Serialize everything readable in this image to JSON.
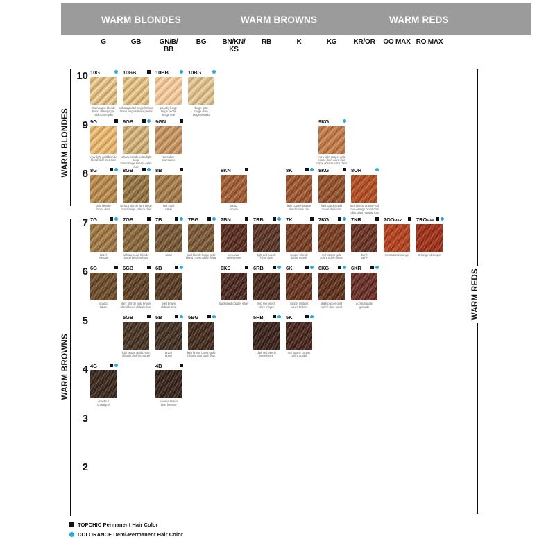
{
  "header": {
    "groups": [
      "WARM BLONDES",
      "WARM BROWNS",
      "WARM REDS"
    ]
  },
  "side_labels": {
    "left_top": "WARM BLONDES",
    "left_bottom": "WARM BROWNS",
    "right": "WARM REDS"
  },
  "legend": [
    {
      "marker": "topchic-square",
      "color": "#111111",
      "label": "TOPCHIC Permanent Hair Color"
    },
    {
      "marker": "colorance-dot",
      "color": "#2aa9dc",
      "label": "COLORANCE Demi-Permanent Hair Color"
    }
  ],
  "chart_data": {
    "type": "table",
    "columns": [
      "G",
      "GB",
      "GN/B/BB",
      "BG",
      "BN/KN/KS",
      "RB",
      "K",
      "KG",
      "KR/OR",
      "OO MAX",
      "RO MAX"
    ],
    "columns_display": [
      "G",
      "GB",
      "GN/B/\nBB",
      "BG",
      "BN/KN/\nKS",
      "RB",
      "K",
      "KG",
      "KR/OR",
      "OO MAX",
      "RO MAX"
    ],
    "row_levels": [
      10,
      9,
      8,
      7,
      6,
      5,
      4,
      3,
      2
    ],
    "swatches": [
      {
        "code": "10G",
        "level": 10,
        "column": "G",
        "products": [
          "colorance"
        ],
        "name": "champagne blonde\nblond champagne\nrubio champán",
        "colors": [
          "#eedcb2",
          "#dcb97e",
          "#bd9557"
        ]
      },
      {
        "code": "10GB",
        "level": 10,
        "column": "GB",
        "products": [
          "topchic"
        ],
        "name": "sahara pastel beige blonde\nblond beige sahara pastel",
        "colors": [
          "#eed9a8",
          "#dbb87c",
          "#bd9458"
        ]
      },
      {
        "code": "10BB",
        "level": 10,
        "column": "GN/B/BB",
        "products": [
          "colorance"
        ],
        "name": "peachy beige\nbeige pêche\nbeige real",
        "colors": [
          "#f6ddba",
          "#ecc294",
          "#dba671"
        ]
      },
      {
        "code": "10BG",
        "level": 10,
        "column": "BG",
        "products": [
          "colorance"
        ],
        "name": "beige gold\nbeige doré\nbeige dorado",
        "colors": [
          "#ecd7ae",
          "#d9bb8a",
          "#bc9c65"
        ]
      },
      {
        "code": "9G",
        "level": 9,
        "column": "G",
        "products": [
          "topchic"
        ],
        "name": "very light gold blonde\nblond doré très clair",
        "colors": [
          "#f2cd92",
          "#e2b168",
          "#c49150"
        ]
      },
      {
        "code": "9GB",
        "level": 9,
        "column": "GB",
        "products": [
          "topchic",
          "colorance"
        ],
        "name": "sahara blonde extra light beige\nblond beige sahara extra clair",
        "colors": [
          "#dfc79c",
          "#c8a972",
          "#a8874f"
        ]
      },
      {
        "code": "9GN",
        "level": 9,
        "column": "GN/B/BB",
        "products": [
          "topchic"
        ],
        "name": "turmaline\ntourmaline",
        "colors": [
          "#d8ad7d",
          "#c08e5c",
          "#a07245"
        ]
      },
      {
        "code": "9KG",
        "level": 9,
        "column": "KG",
        "products": [
          "colorance"
        ],
        "name": "extra light copper gold\ncuivré doré extra clair\ncobre dorado extra claro",
        "colors": [
          "#d2925f",
          "#bc7544",
          "#9c5c31"
        ]
      },
      {
        "code": "8G",
        "level": 8,
        "column": "G",
        "products": [
          "topchic",
          "colorance"
        ],
        "name": "gold blonde\nblond doré",
        "colors": [
          "#cb9f63",
          "#b28449",
          "#906834"
        ]
      },
      {
        "code": "8GB",
        "level": 8,
        "column": "GB",
        "products": [
          "topchic",
          "colorance"
        ],
        "name": "sahara blonde light beige\nblond beige sahara clair",
        "colors": [
          "#ad8d5a",
          "#8f6e40",
          "#6f542b"
        ]
      },
      {
        "code": "8B",
        "level": 8,
        "column": "GN/B/BB",
        "products": [
          "topchic"
        ],
        "name": "sea sand\nsable",
        "colors": [
          "#b99060",
          "#a07847",
          "#7f5d33"
        ]
      },
      {
        "code": "8KN",
        "level": 8,
        "column": "BN/KN/KS",
        "products": [
          "topchic"
        ],
        "name": "topaz\ntopaze",
        "colors": [
          "#b4734c",
          "#9a5931",
          "#7d4524"
        ]
      },
      {
        "code": "8K",
        "level": 8,
        "column": "K",
        "products": [
          "topchic",
          "colorance"
        ],
        "name": "light copper blonde\nblond cuivré clair",
        "colors": [
          "#b06f45",
          "#964f2c",
          "#7c4020"
        ]
      },
      {
        "code": "8KG",
        "level": 8,
        "column": "KG",
        "products": [
          "topchic"
        ],
        "name": "light copper gold\ncuivré doré clair",
        "colors": [
          "#a9653d",
          "#8e4e29",
          "#713b1d"
        ]
      },
      {
        "code": "8OR",
        "level": 8,
        "column": "KR/OR",
        "products": [
          "colorance"
        ],
        "name": "light blonde orange-red\nroux-orange blond clair\nrubio claro naranja rojo",
        "colors": [
          "#c66231",
          "#ab4b23",
          "#8d3a18"
        ]
      },
      {
        "code": "7G",
        "level": 7,
        "column": "G",
        "products": [
          "topchic",
          "colorance"
        ],
        "name": "hazel\nnoisette",
        "colors": [
          "#b68d57",
          "#9a7341",
          "#7b5a32"
        ]
      },
      {
        "code": "7GB",
        "level": 7,
        "column": "GB",
        "products": [
          "topchic"
        ],
        "name": "sahara beige blonde\nblond beige sahara",
        "colors": [
          "#9f7e51",
          "#846439",
          "#684c29"
        ]
      },
      {
        "code": "7B",
        "level": 7,
        "column": "GN/B/BB",
        "products": [
          "topchic",
          "colorance"
        ],
        "name": "safari",
        "colors": [
          "#8d6d47",
          "#725435",
          "#594025"
        ]
      },
      {
        "code": "7BG",
        "level": 7,
        "column": "BG",
        "products": [
          "topchic",
          "colorance"
        ],
        "name": "mid blonde beige gold\nblond moyen doré beige",
        "colors": [
          "#8f6e45",
          "#765636",
          "#5c4126"
        ]
      },
      {
        "code": "7BN",
        "level": 7,
        "column": "BN/KN/KS",
        "products": [
          "topchic"
        ],
        "name": "vesuvian\nvésuvienne",
        "colors": [
          "#6e4232",
          "#562b1e",
          "#3e1e15"
        ]
      },
      {
        "code": "7RB",
        "level": 7,
        "column": "RB",
        "products": [
          "topchic",
          "colorance"
        ],
        "name": "light red beech\nhêtre clair",
        "colors": [
          "#704736",
          "#583426",
          "#402419"
        ]
      },
      {
        "code": "7K",
        "level": 7,
        "column": "K",
        "products": [
          "topchic"
        ],
        "name": "copper blonde\nblond cuivré",
        "colors": [
          "#8d5135",
          "#733c23",
          "#592d18"
        ]
      },
      {
        "code": "7KG",
        "level": 7,
        "column": "KG",
        "products": [
          "topchic",
          "colorance"
        ],
        "name": "red copper gold\ncuivré doré moyen",
        "colors": [
          "#8f4e2e",
          "#743c20",
          "#5a2e17"
        ]
      },
      {
        "code": "7KR",
        "level": 7,
        "column": "KR/OR",
        "products": [
          "topchic"
        ],
        "name": "beryl\nbéryl",
        "colors": [
          "#7f4536",
          "#663224",
          "#4a2218"
        ]
      },
      {
        "code": "7OOMAX",
        "level": 7,
        "column": "OO MAX",
        "products": [
          "topchic"
        ],
        "name": "sensational orange",
        "colors": [
          "#c8532a",
          "#ac3f1d",
          "#8d3115"
        ]
      },
      {
        "code": "7ROMAX",
        "level": 7,
        "column": "RO MAX",
        "products": [
          "topchic",
          "colorance"
        ],
        "name": "striking red copper",
        "colors": [
          "#b44026",
          "#992f19",
          "#7c2511"
        ]
      },
      {
        "code": "6G",
        "level": 6,
        "column": "G",
        "products": [
          "topchic"
        ],
        "name": "tobacco\ntabac",
        "colors": [
          "#815e3c",
          "#684928",
          "#4f371e"
        ]
      },
      {
        "code": "6GB",
        "level": 6,
        "column": "GB",
        "products": [
          "topchic"
        ],
        "name": "dark blonde gold brown\nblond foncé châtain doré",
        "colors": [
          "#715434",
          "#5a3f24",
          "#422e19"
        ]
      },
      {
        "code": "6B",
        "level": 6,
        "column": "GN/B/BB",
        "products": [
          "topchic",
          "colorance"
        ],
        "name": "gold brown\nchâtain doré",
        "colors": [
          "#6d4e36",
          "#563a24",
          "#3f2a18"
        ]
      },
      {
        "code": "6KS",
        "level": 6,
        "column": "BN/KN/KS",
        "products": [
          "topchic"
        ],
        "name": "blackened copper silver",
        "colors": [
          "#5f3a32",
          "#482720",
          "#321914"
        ]
      },
      {
        "code": "6RB",
        "level": 6,
        "column": "RB",
        "products": [
          "topchic",
          "colorance"
        ],
        "name": "mid red beech\nhêtre moyen",
        "colors": [
          "#5f3b2e",
          "#492a1e",
          "#341d13"
        ]
      },
      {
        "code": "6K",
        "level": 6,
        "column": "K",
        "products": [
          "topchic",
          "colorance"
        ],
        "name": "copper brilliant\ncuivré brillant",
        "colors": [
          "#7d4632",
          "#643320",
          "#4a2413"
        ]
      },
      {
        "code": "6KG",
        "level": 6,
        "column": "KG",
        "products": [
          "topchic",
          "colorance"
        ],
        "name": "dark copper gold\ncuivré doré foncé",
        "colors": [
          "#74422e",
          "#5c311e",
          "#422113"
        ]
      },
      {
        "code": "6KR",
        "level": 6,
        "column": "KR/OR",
        "products": [
          "topchic",
          "colorance"
        ],
        "name": "pomegranate\ngrenade",
        "colors": [
          "#7f3f37",
          "#652e27",
          "#4a1f1a"
        ]
      },
      {
        "code": "5GB",
        "level": 5,
        "column": "GB",
        "products": [
          "topchic"
        ],
        "name": "light brown gold brown\nchâtain clair brun doré",
        "colors": [
          "#5b4534",
          "#473322",
          "#332416"
        ]
      },
      {
        "code": "5B",
        "level": 5,
        "column": "GN/B/BB",
        "products": [
          "topchic",
          "colorance"
        ],
        "name": "brazil\nbrésil",
        "colors": [
          "#554336",
          "#423024",
          "#2f2117"
        ]
      },
      {
        "code": "5BG",
        "level": 5,
        "column": "BG",
        "products": [
          "topchic",
          "colorance"
        ],
        "name": "light brown brown gold\nchâtain clair doré brun",
        "colors": [
          "#563c2e",
          "#432b1f",
          "#301d13"
        ]
      },
      {
        "code": "5RB",
        "level": 5,
        "column": "RB",
        "products": [
          "topchic",
          "colorance"
        ],
        "name": "dark red beech\nhêtre foncé",
        "colors": [
          "#4f322b",
          "#3b231c",
          "#281611"
        ]
      },
      {
        "code": "5K",
        "level": 5,
        "column": "K",
        "products": [
          "topchic",
          "colorance"
        ],
        "name": "mahogany copper\ncuivre acajou",
        "colors": [
          "#5b362e",
          "#47261f",
          "#321813"
        ]
      },
      {
        "code": "4G",
        "level": 4,
        "column": "G",
        "products": [
          "topchic",
          "colorance"
        ],
        "name": "chestnut\nchâtaigne",
        "colors": [
          "#4d392c",
          "#3b291e",
          "#2a1c12"
        ]
      },
      {
        "code": "4B",
        "level": 4,
        "column": "GN/B/BB",
        "products": [
          "topchic"
        ],
        "name": "havana brown\nbrun havane",
        "colors": [
          "#483529",
          "#36251c",
          "#251910"
        ]
      }
    ]
  }
}
